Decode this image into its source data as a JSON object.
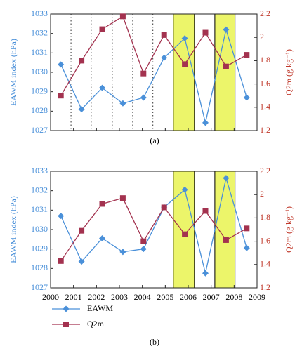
{
  "chart_data": [
    {
      "type": "line",
      "label": "(a)",
      "ylabel": "EAWM index (hPa)",
      "y2label": "Q2m (g kg⁻¹)",
      "x": [
        2000.45,
        2001.35,
        2002.25,
        2003.15,
        2004.05,
        2004.95,
        2005.85,
        2006.75,
        2007.65,
        2008.55
      ],
      "series": [
        {
          "name": "EAWM",
          "color": "#4a90d9",
          "marker": "diamond",
          "values": [
            1030.4,
            1028.1,
            1029.2,
            1028.4,
            1028.7,
            1030.75,
            1031.75,
            1027.4,
            1032.2,
            1028.7
          ]
        },
        {
          "name": "Q2m",
          "color": "#a3324f",
          "marker": "square",
          "axis": "y2",
          "values": [
            1.5,
            1.8,
            2.07,
            2.18,
            1.69,
            2.02,
            1.77,
            2.04,
            1.75,
            1.85
          ]
        }
      ],
      "xlim": [
        2000,
        2009
      ],
      "xticks": [
        2000,
        2001,
        2002,
        2003,
        2004,
        2005,
        2006,
        2007,
        2008,
        2009
      ],
      "xticklabels": false,
      "ylim": [
        1027,
        1033
      ],
      "yticks": [
        1027,
        1028,
        1029,
        1030,
        1031,
        1032,
        1033
      ],
      "y2lim": [
        1.2,
        2.2
      ],
      "y2ticks": [
        1.2,
        1.4,
        1.6,
        1.8,
        2,
        2.2
      ],
      "vlines": [
        2000.89,
        2001.77,
        2002.69,
        2003.58,
        2004.46
      ],
      "shaded": [
        [
          2005.35,
          2006.27
        ],
        [
          2007.16,
          2008.04
        ]
      ],
      "shade_color": "#ecf56a"
    },
    {
      "type": "line",
      "label": "(b)",
      "ylabel": "EAWM index (hPa)",
      "y2label": "Q2m (g kg⁻¹)",
      "x": [
        2000.45,
        2001.35,
        2002.25,
        2003.15,
        2004.05,
        2004.95,
        2005.85,
        2006.75,
        2007.65,
        2008.55
      ],
      "series": [
        {
          "name": "EAWM",
          "color": "#4a90d9",
          "marker": "diamond",
          "values": [
            1030.7,
            1028.35,
            1029.55,
            1028.85,
            1029.0,
            1031.15,
            1032.05,
            1027.75,
            1032.65,
            1029.05
          ]
        },
        {
          "name": "Q2m",
          "color": "#a3324f",
          "marker": "square",
          "axis": "y2",
          "values": [
            1.43,
            1.69,
            1.92,
            1.97,
            1.6,
            1.89,
            1.66,
            1.86,
            1.61,
            1.71
          ]
        }
      ],
      "xlim": [
        2000,
        2009
      ],
      "xticks": [
        2000,
        2001,
        2002,
        2003,
        2004,
        2005,
        2006,
        2007,
        2008,
        2009
      ],
      "xticklabels": true,
      "ylim": [
        1027,
        1033
      ],
      "yticks": [
        1027,
        1028,
        1029,
        1030,
        1031,
        1032,
        1033
      ],
      "y2lim": [
        1.2,
        2.2
      ],
      "y2ticks": [
        1.2,
        1.4,
        1.6,
        1.8,
        2,
        2.2
      ],
      "vlines": [],
      "shaded": [
        [
          2005.35,
          2006.27
        ],
        [
          2007.16,
          2008.04
        ]
      ],
      "shade_color": "#ecf56a"
    }
  ]
}
